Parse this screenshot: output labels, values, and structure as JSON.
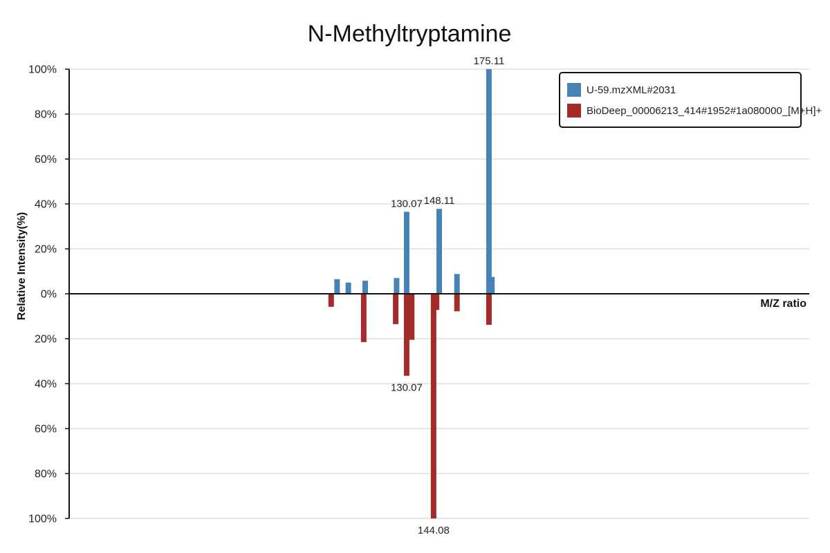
{
  "chart_data": {
    "type": "bar",
    "title": "N-Methyltryptamine",
    "xlabel": "M/Z ratio",
    "ylabel": "Relative Intensity(%)",
    "ylim": [
      -100,
      100
    ],
    "y_ticks": [
      "100%",
      "80%",
      "60%",
      "40%",
      "20%",
      "0%",
      "20%",
      "40%",
      "60%",
      "80%",
      "100%"
    ],
    "xlim": [
      0,
      250
    ],
    "grid": true,
    "legend_position": "top-right",
    "series": [
      {
        "name": "U-59.mzXML#2031",
        "color": "#4682b4",
        "direction": "up",
        "peaks": [
          {
            "mz": 90.5,
            "intensity": 6.5
          },
          {
            "mz": 94.3,
            "intensity": 5.0
          },
          {
            "mz": 100.0,
            "intensity": 5.8
          },
          {
            "mz": 110.6,
            "intensity": 7.0
          },
          {
            "mz": 114.0,
            "intensity": 36.5
          },
          {
            "mz": 125.0,
            "intensity": 37.8
          },
          {
            "mz": 131.0,
            "intensity": 8.8
          },
          {
            "mz": 141.8,
            "intensity": 100.0
          },
          {
            "mz": 142.8,
            "intensity": 7.5
          }
        ],
        "labels": [
          {
            "mz": 114.0,
            "intensity": 36.5,
            "text": "130.07"
          },
          {
            "mz": 125.0,
            "intensity": 37.8,
            "text": "148.11"
          },
          {
            "mz": 141.8,
            "intensity": 100.0,
            "text": "175.11"
          }
        ]
      },
      {
        "name": "BioDeep_00006213_414#1952#1a080000_[M+H]+",
        "color": "#a52a2a",
        "direction": "down",
        "peaks": [
          {
            "mz": 88.5,
            "intensity": 5.8
          },
          {
            "mz": 99.5,
            "intensity": 21.5
          },
          {
            "mz": 110.3,
            "intensity": 13.5
          },
          {
            "mz": 114.0,
            "intensity": 36.5
          },
          {
            "mz": 115.7,
            "intensity": 20.5
          },
          {
            "mz": 123.1,
            "intensity": 100.0
          },
          {
            "mz": 124.1,
            "intensity": 7.2
          },
          {
            "mz": 131.0,
            "intensity": 7.8
          },
          {
            "mz": 141.8,
            "intensity": 13.8
          }
        ],
        "labels": [
          {
            "mz": 114.0,
            "intensity": 36.5,
            "text": "130.07"
          },
          {
            "mz": 123.1,
            "intensity": 100.0,
            "text": "144.08"
          }
        ]
      }
    ]
  }
}
